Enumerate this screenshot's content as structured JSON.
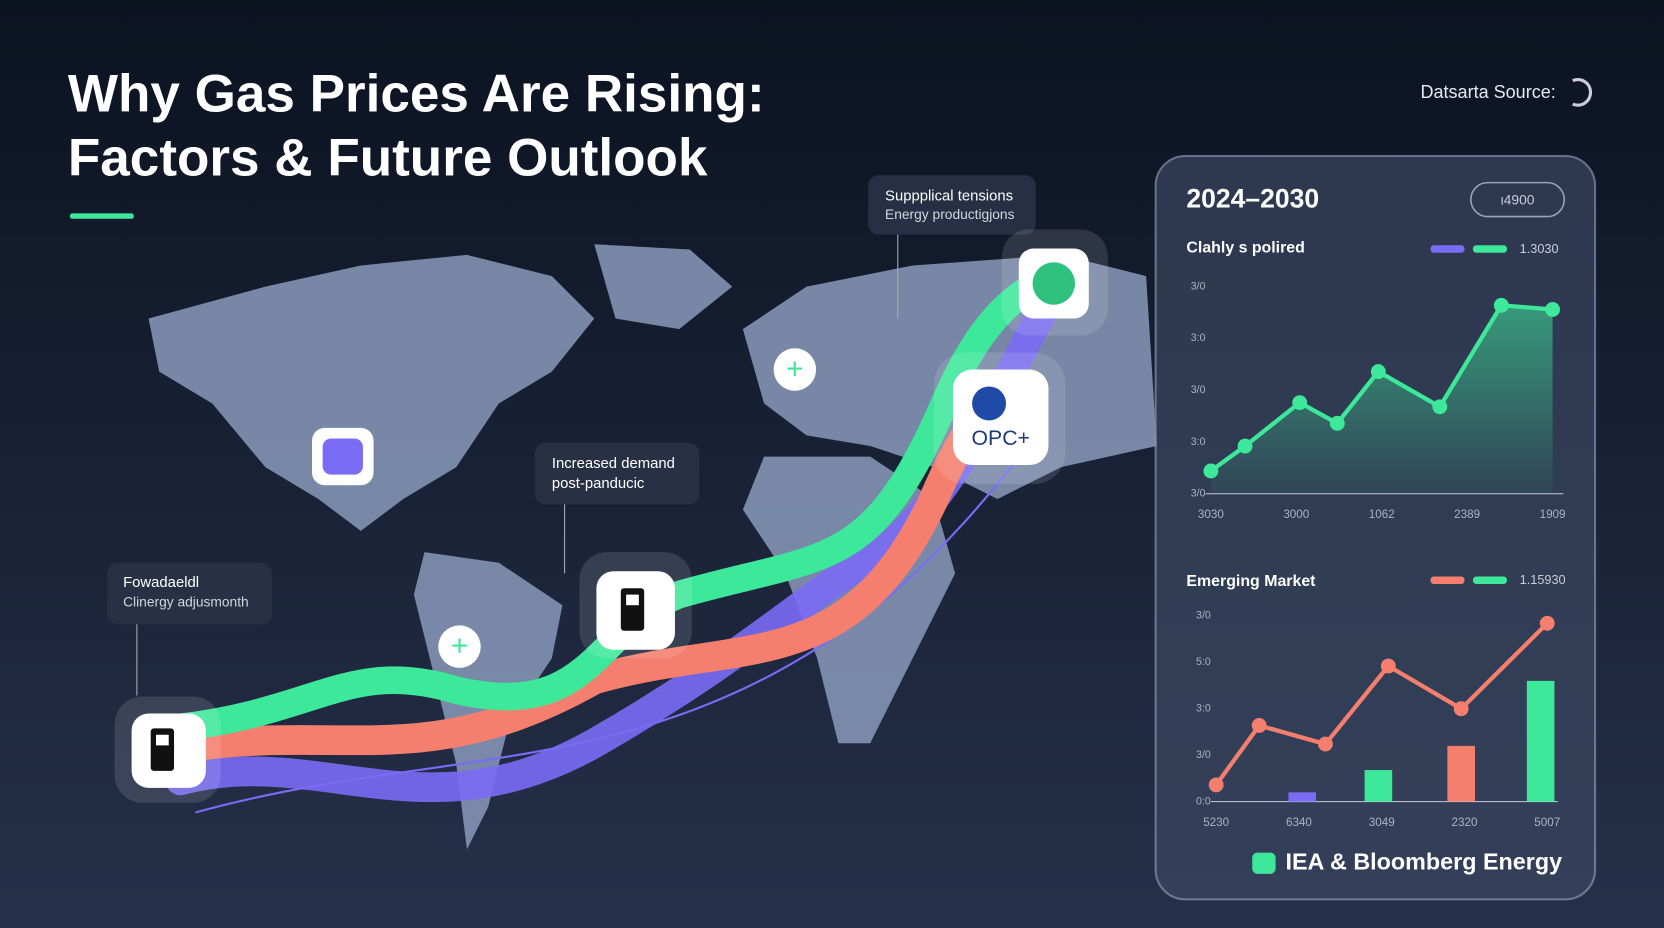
{
  "header": {
    "title_line1": "Why Gas Prices Are Rising:",
    "title_line2": "Factors & Future Outlook",
    "source_label": "Datsarta Source:"
  },
  "callouts": [
    {
      "line1": "Suppplical tensions",
      "line2": "Energy productigjons"
    },
    {
      "line1": "Increased demand",
      "line2": "post-panducic"
    },
    {
      "line1": "Fowadaeldl",
      "line2": "Clinergy adjusmonth"
    }
  ],
  "icons": {
    "opec": "OPC+"
  },
  "panel": {
    "title": "2024–2030",
    "badge": "ι4900",
    "chart1": {
      "label": "Clahly s polired",
      "legend": "1.3030",
      "yticks": [
        "3/0",
        "3:0",
        "3/0",
        "3:0",
        "3/0"
      ],
      "xticks": [
        "3030",
        "3000",
        "1062",
        "2389",
        "1909"
      ],
      "x": [
        0,
        10,
        26,
        37,
        49,
        67,
        85,
        100
      ],
      "values": [
        11,
        23,
        44,
        34,
        59,
        42,
        91,
        89
      ],
      "color": "#3ee89a"
    },
    "chart2": {
      "label": "Emerging Market",
      "legend": "1.15930",
      "yticks": [
        "3/0",
        "5:0",
        "3:0",
        "3/0",
        "0:0"
      ],
      "xticks": [
        "5230",
        "6340",
        "3049",
        "2320",
        "5007"
      ],
      "x": [
        0,
        13,
        33,
        52,
        74,
        100
      ],
      "values": [
        9,
        41,
        31,
        73,
        50,
        96
      ],
      "color": "#f57f6e",
      "bars": {
        "x": [
          26,
          49,
          74,
          98
        ],
        "values": [
          5,
          17,
          30,
          65
        ],
        "colors": [
          "#7a6cf5",
          "#3ee89a",
          "#f57f6e",
          "#3ee89a"
        ]
      }
    },
    "footer": "IEA & Bloomberg Energy"
  }
}
